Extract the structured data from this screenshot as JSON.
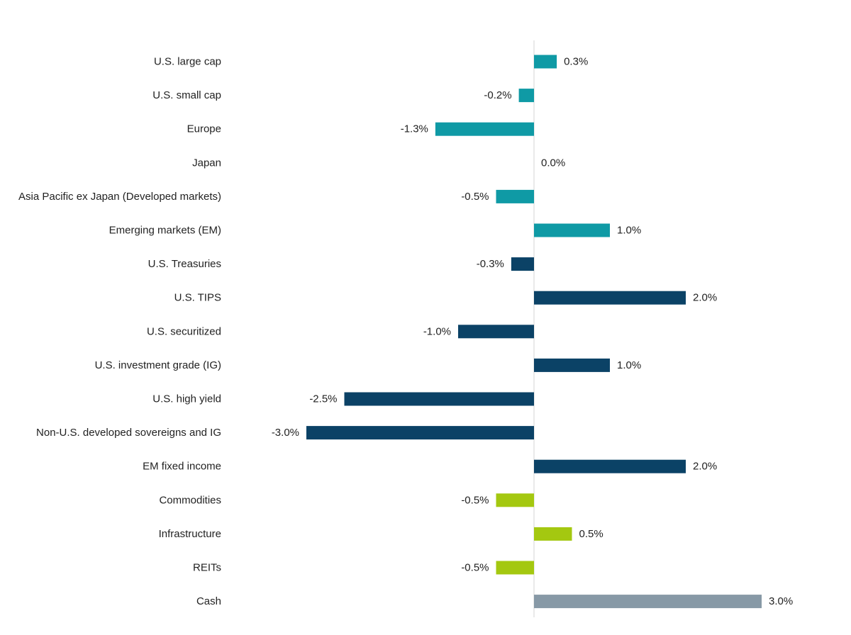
{
  "chart_data": {
    "type": "bar",
    "orientation": "horizontal",
    "categories": [
      "U.S. large cap",
      "U.S. small cap",
      "Europe",
      "Japan",
      "Asia Pacific ex Japan (Developed markets)",
      "Emerging markets (EM)",
      "U.S. Treasuries",
      "U.S. TIPS",
      "U.S. securitized",
      "U.S. investment grade (IG)",
      "U.S. high yield",
      "Non-U.S. developed sovereigns and IG",
      "EM fixed income",
      "Commodities",
      "Infrastructure",
      "REITs",
      "Cash"
    ],
    "values": [
      0.3,
      -0.2,
      -1.3,
      0.0,
      -0.5,
      1.0,
      -0.3,
      2.0,
      -1.0,
      1.0,
      -2.5,
      -3.0,
      2.0,
      -0.5,
      0.5,
      -0.5,
      3.0
    ],
    "value_labels": [
      "0.3%",
      "-0.2%",
      "-1.3%",
      "0.0%",
      "-0.5%",
      "1.0%",
      "-0.3%",
      "2.0%",
      "-1.0%",
      "1.0%",
      "-2.5%",
      "-3.0%",
      "2.0%",
      "-0.5%",
      "0.5%",
      "-0.5%",
      "3.0%"
    ],
    "bar_colors": [
      "#0f9aa5",
      "#0f9aa5",
      "#0f9aa5",
      "#0f9aa5",
      "#0f9aa5",
      "#0f9aa5",
      "#0b4266",
      "#0b4266",
      "#0b4266",
      "#0b4266",
      "#0b4266",
      "#0b4266",
      "#0b4266",
      "#a4c810",
      "#a4c810",
      "#a4c810",
      "#8799a6"
    ],
    "xlim": [
      -3.0,
      3.0
    ],
    "title": "",
    "xlabel": "",
    "ylabel": "",
    "grid": false,
    "legend": "none",
    "zero_line_color": "#d4d4d4"
  }
}
